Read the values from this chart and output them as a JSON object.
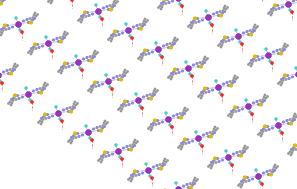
{
  "bg_color": "#ffffff",
  "atom_types": {
    "Pt": {
      "color": "#9933bb",
      "size": 18,
      "zorder": 5,
      "ec": "#7700aa"
    },
    "N": {
      "color": "#8888ee",
      "size": 5,
      "zorder": 4,
      "ec": "none"
    },
    "C": {
      "color": "#999999",
      "size": 4,
      "zorder": 4,
      "ec": "none"
    },
    "S": {
      "color": "#ddbb00",
      "size": 9,
      "zorder": 4,
      "ec": "none"
    },
    "O": {
      "color": "#ff2222",
      "size": 7,
      "zorder": 6,
      "ec": "none"
    },
    "Cl": {
      "color": "#44cccc",
      "size": 6,
      "zorder": 4,
      "ec": "none"
    }
  },
  "bond_color": "#aaaaaa",
  "bond_lw": 0.4,
  "hbond_color": "#ff5555",
  "hbond_lw": 0.5,
  "figsize": [
    2.97,
    1.89
  ],
  "dpi": 100,
  "xlim": [
    0,
    2.97
  ],
  "ylim": [
    0,
    1.89
  ]
}
